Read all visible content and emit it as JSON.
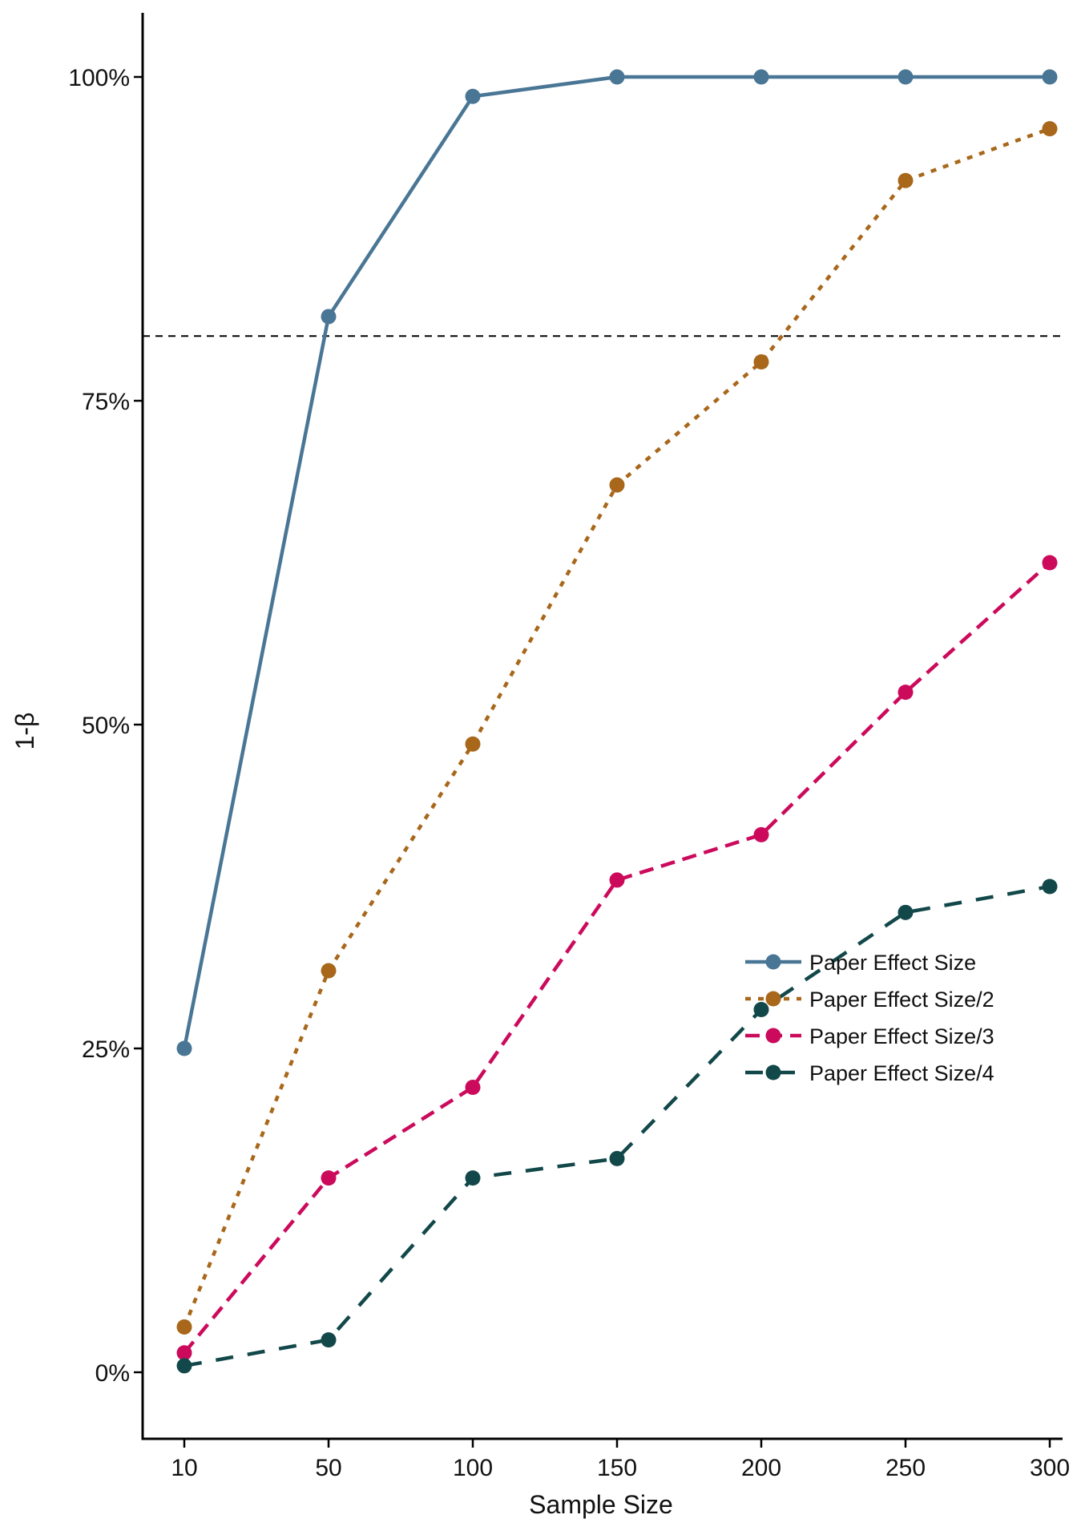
{
  "chart_data": {
    "type": "line",
    "xlabel": "Sample Size",
    "ylabel": "1-β",
    "x": [
      10,
      50,
      100,
      150,
      200,
      250,
      300
    ],
    "x_tick_labels": [
      "10",
      "50",
      "100",
      "150",
      "200",
      "250",
      "300"
    ],
    "ylim": [
      -0.05,
      1.05
    ],
    "y_ticks": [
      0,
      0.25,
      0.5,
      0.75,
      1.0
    ],
    "y_tick_labels": [
      "0%",
      "25%",
      "50%",
      "75%",
      "100%"
    ],
    "reference_line": {
      "y": 0.8,
      "style": "dashed",
      "color": "#000000"
    },
    "grid": false,
    "legend_position": "lower-right",
    "series": [
      {
        "name": "Paper Effect Size",
        "color": "#4a7696",
        "dash": "solid",
        "values": [
          0.25,
          0.815,
          0.985,
          1.0,
          1.0,
          1.0,
          1.0
        ]
      },
      {
        "name": "Paper Effect Size/2",
        "color": "#a8671a",
        "dash": "dotted",
        "values": [
          0.035,
          0.31,
          0.485,
          0.685,
          0.78,
          0.92,
          0.96
        ]
      },
      {
        "name": "Paper Effect Size/3",
        "color": "#cc0a5c",
        "dash": "dashed",
        "values": [
          0.015,
          0.15,
          0.22,
          0.38,
          0.415,
          0.525,
          0.625
        ]
      },
      {
        "name": "Paper Effect Size/4",
        "color": "#12484a",
        "dash": "longdash",
        "values": [
          0.005,
          0.025,
          0.15,
          0.165,
          0.28,
          0.355,
          0.375
        ]
      }
    ]
  }
}
